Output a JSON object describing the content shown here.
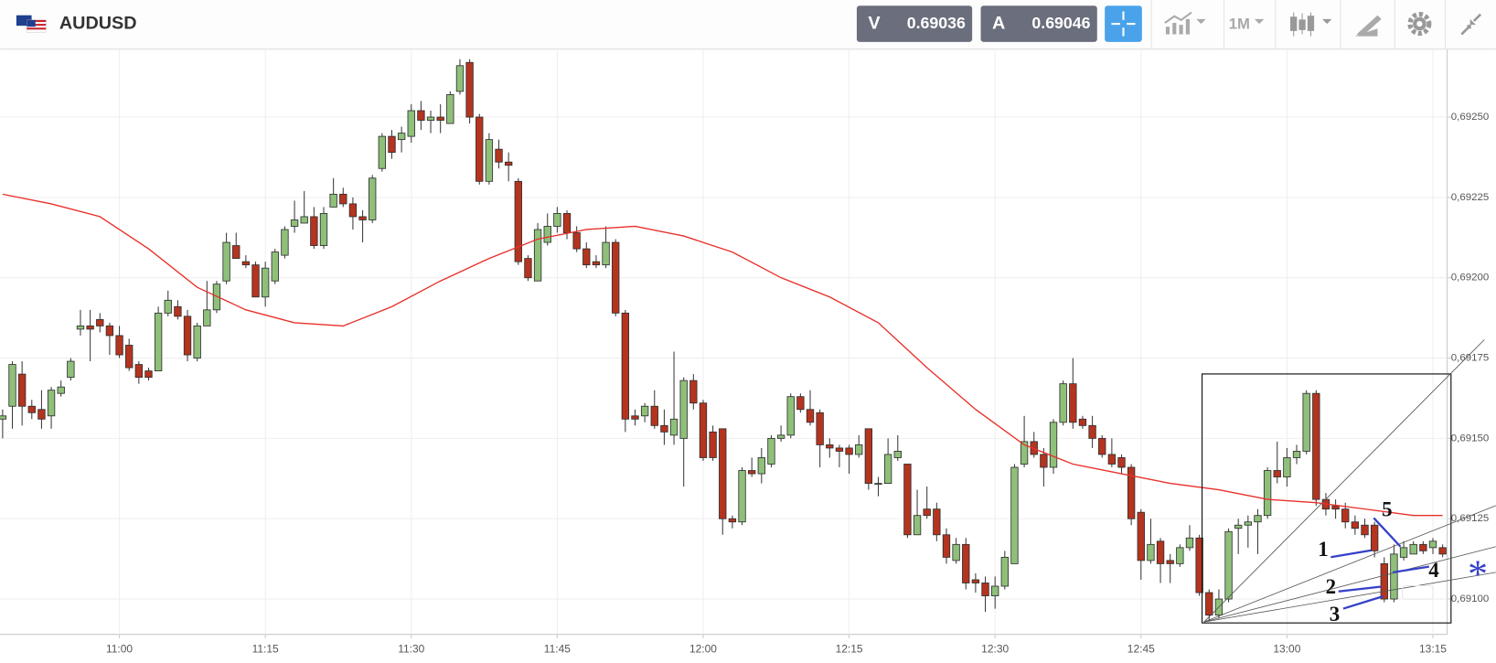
{
  "header": {
    "symbol": "AUDUSD",
    "bid_label": "V",
    "bid": 0.69036,
    "ask_label": "A",
    "ask": 0.69046,
    "timeframe": "1M"
  },
  "chart_data": {
    "type": "candlestick",
    "x": [
      "10:48",
      "10:49",
      "10:50",
      "10:51",
      "10:52",
      "10:53",
      "10:54",
      "10:55",
      "10:56",
      "10:57",
      "10:58",
      "10:59",
      "11:00",
      "11:01",
      "11:02",
      "11:03",
      "11:04",
      "11:05",
      "11:06",
      "11:07",
      "11:08",
      "11:09",
      "11:10",
      "11:11",
      "11:12",
      "11:13",
      "11:14",
      "11:15",
      "11:16",
      "11:17",
      "11:18",
      "11:19",
      "11:20",
      "11:21",
      "11:22",
      "11:23",
      "11:24",
      "11:25",
      "11:26",
      "11:27",
      "11:28",
      "11:29",
      "11:30",
      "11:31",
      "11:32",
      "11:33",
      "11:34",
      "11:35",
      "11:36",
      "11:37",
      "11:38",
      "11:39",
      "11:40",
      "11:41",
      "11:42",
      "11:43",
      "11:44",
      "11:45",
      "11:46",
      "11:47",
      "11:48",
      "11:49",
      "11:50",
      "11:51",
      "11:52",
      "11:53",
      "11:54",
      "11:55",
      "11:56",
      "11:57",
      "11:58",
      "11:59",
      "12:00",
      "12:01",
      "12:02",
      "12:03",
      "12:04",
      "12:05",
      "12:06",
      "12:07",
      "12:08",
      "12:09",
      "12:10",
      "12:11",
      "12:12",
      "12:13",
      "12:14",
      "12:15",
      "12:16",
      "12:17",
      "12:18",
      "12:19",
      "12:20",
      "12:21",
      "12:22",
      "12:23",
      "12:24",
      "12:25",
      "12:26",
      "12:27",
      "12:28",
      "12:29",
      "12:30",
      "12:31",
      "12:32",
      "12:33",
      "12:34",
      "12:35",
      "12:36",
      "12:37",
      "12:38",
      "12:39",
      "12:40",
      "12:41",
      "12:42",
      "12:43",
      "12:44",
      "12:45",
      "12:46",
      "12:47",
      "12:48",
      "12:49",
      "12:50",
      "12:51",
      "12:52",
      "12:53",
      "12:54",
      "12:55",
      "12:56",
      "12:57",
      "12:58",
      "12:59",
      "13:00",
      "13:01",
      "13:02",
      "13:03",
      "13:04",
      "13:05",
      "13:06",
      "13:07",
      "13:08",
      "13:09",
      "13:10",
      "13:11",
      "13:12",
      "13:13",
      "13:14",
      "13:15",
      "13:16"
    ],
    "ohlc": [
      [
        0.69156,
        0.69159,
        0.6915,
        0.69157
      ],
      [
        0.6916,
        0.69174,
        0.69153,
        0.69173
      ],
      [
        0.6917,
        0.69174,
        0.69154,
        0.6916
      ],
      [
        0.6916,
        0.69162,
        0.69156,
        0.69158
      ],
      [
        0.69159,
        0.69165,
        0.69153,
        0.69156
      ],
      [
        0.69157,
        0.69166,
        0.69153,
        0.69165
      ],
      [
        0.69164,
        0.69168,
        0.69163,
        0.69166
      ],
      [
        0.69169,
        0.69175,
        0.69168,
        0.69174
      ],
      [
        0.69184,
        0.6919,
        0.69182,
        0.69185
      ],
      [
        0.69185,
        0.6919,
        0.69174,
        0.69184
      ],
      [
        0.69187,
        0.69189,
        0.69183,
        0.69185
      ],
      [
        0.69185,
        0.69186,
        0.69176,
        0.69182
      ],
      [
        0.69182,
        0.69185,
        0.69175,
        0.69176
      ],
      [
        0.69179,
        0.69181,
        0.69171,
        0.69172
      ],
      [
        0.69173,
        0.69174,
        0.69167,
        0.69169
      ],
      [
        0.69171,
        0.69172,
        0.69168,
        0.69169
      ],
      [
        0.69171,
        0.69191,
        0.69171,
        0.69189
      ],
      [
        0.69189,
        0.69196,
        0.69188,
        0.69193
      ],
      [
        0.69191,
        0.69193,
        0.69187,
        0.69188
      ],
      [
        0.69188,
        0.6919,
        0.69174,
        0.69176
      ],
      [
        0.69175,
        0.69186,
        0.69174,
        0.69185
      ],
      [
        0.69185,
        0.69199,
        0.69185,
        0.6919
      ],
      [
        0.6919,
        0.69199,
        0.69189,
        0.69198
      ],
      [
        0.69199,
        0.69214,
        0.69198,
        0.69211
      ],
      [
        0.6921,
        0.69214,
        0.69206,
        0.69206
      ],
      [
        0.69205,
        0.69207,
        0.69203,
        0.69204
      ],
      [
        0.69204,
        0.69205,
        0.69194,
        0.69194
      ],
      [
        0.69194,
        0.69205,
        0.69191,
        0.69203
      ],
      [
        0.69199,
        0.69209,
        0.69198,
        0.69208
      ],
      [
        0.69207,
        0.69216,
        0.69206,
        0.69215
      ],
      [
        0.69216,
        0.69224,
        0.69214,
        0.69218
      ],
      [
        0.69217,
        0.69227,
        0.69217,
        0.69219
      ],
      [
        0.69219,
        0.69222,
        0.69209,
        0.6921
      ],
      [
        0.6921,
        0.69222,
        0.69209,
        0.6922
      ],
      [
        0.69222,
        0.69231,
        0.69222,
        0.69226
      ],
      [
        0.69226,
        0.69228,
        0.69222,
        0.69223
      ],
      [
        0.69223,
        0.69225,
        0.69215,
        0.69219
      ],
      [
        0.69219,
        0.69221,
        0.69211,
        0.69218
      ],
      [
        0.69218,
        0.69232,
        0.69217,
        0.69231
      ],
      [
        0.69234,
        0.69245,
        0.69233,
        0.69244
      ],
      [
        0.69244,
        0.69246,
        0.69237,
        0.69239
      ],
      [
        0.69243,
        0.69247,
        0.69239,
        0.69245
      ],
      [
        0.69244,
        0.69254,
        0.69242,
        0.69252
      ],
      [
        0.69252,
        0.69255,
        0.69246,
        0.69249
      ],
      [
        0.69249,
        0.69252,
        0.69245,
        0.6925
      ],
      [
        0.6925,
        0.69254,
        0.69245,
        0.69249
      ],
      [
        0.69248,
        0.69258,
        0.69248,
        0.69257
      ],
      [
        0.69258,
        0.69268,
        0.69257,
        0.69266
      ],
      [
        0.69267,
        0.69268,
        0.69248,
        0.6925
      ],
      [
        0.6925,
        0.69251,
        0.69229,
        0.6923
      ],
      [
        0.6923,
        0.69245,
        0.69229,
        0.69243
      ],
      [
        0.6924,
        0.69243,
        0.69234,
        0.69236
      ],
      [
        0.69236,
        0.69239,
        0.6923,
        0.69235
      ],
      [
        0.6923,
        0.69231,
        0.69204,
        0.69205
      ],
      [
        0.69206,
        0.69207,
        0.69199,
        0.692
      ],
      [
        0.69199,
        0.69217,
        0.69199,
        0.69215
      ],
      [
        0.69211,
        0.6922,
        0.6921,
        0.69216
      ],
      [
        0.69216,
        0.69222,
        0.69214,
        0.6922
      ],
      [
        0.6922,
        0.69221,
        0.69212,
        0.69214
      ],
      [
        0.69214,
        0.69216,
        0.69208,
        0.69209
      ],
      [
        0.69209,
        0.69211,
        0.69203,
        0.69204
      ],
      [
        0.69205,
        0.69207,
        0.69203,
        0.69204
      ],
      [
        0.69204,
        0.69216,
        0.69203,
        0.69211
      ],
      [
        0.69211,
        0.69212,
        0.69188,
        0.69189
      ],
      [
        0.69189,
        0.6919,
        0.69152,
        0.69156
      ],
      [
        0.69157,
        0.69159,
        0.69154,
        0.69156
      ],
      [
        0.69157,
        0.69161,
        0.69155,
        0.6916
      ],
      [
        0.6916,
        0.69165,
        0.69153,
        0.69154
      ],
      [
        0.69154,
        0.69159,
        0.69148,
        0.69152
      ],
      [
        0.69151,
        0.69177,
        0.69148,
        0.69156
      ],
      [
        0.6915,
        0.69169,
        0.69135,
        0.69168
      ],
      [
        0.69168,
        0.6917,
        0.69159,
        0.69161
      ],
      [
        0.69161,
        0.69162,
        0.69143,
        0.69144
      ],
      [
        0.69152,
        0.69154,
        0.69143,
        0.69144
      ],
      [
        0.69153,
        0.69153,
        0.6912,
        0.69125
      ],
      [
        0.69125,
        0.69126,
        0.69122,
        0.69124
      ],
      [
        0.69124,
        0.69141,
        0.69123,
        0.6914
      ],
      [
        0.6914,
        0.69144,
        0.69138,
        0.69139
      ],
      [
        0.69139,
        0.69147,
        0.69136,
        0.69144
      ],
      [
        0.69142,
        0.69151,
        0.69141,
        0.6915
      ],
      [
        0.6915,
        0.69154,
        0.69149,
        0.69151
      ],
      [
        0.69151,
        0.69164,
        0.6915,
        0.69163
      ],
      [
        0.69163,
        0.69164,
        0.69158,
        0.69159
      ],
      [
        0.69159,
        0.69165,
        0.69154,
        0.69155
      ],
      [
        0.69158,
        0.69159,
        0.69141,
        0.69148
      ],
      [
        0.69148,
        0.6915,
        0.69144,
        0.69147
      ],
      [
        0.69147,
        0.69148,
        0.69141,
        0.69146
      ],
      [
        0.69147,
        0.69148,
        0.69139,
        0.69145
      ],
      [
        0.69145,
        0.69151,
        0.69144,
        0.69148
      ],
      [
        0.69153,
        0.69153,
        0.69134,
        0.69136
      ],
      [
        0.69136,
        0.69138,
        0.69132,
        0.69136
      ],
      [
        0.69136,
        0.6915,
        0.69136,
        0.69145
      ],
      [
        0.69144,
        0.69151,
        0.69143,
        0.69146
      ],
      [
        0.69142,
        0.69142,
        0.69119,
        0.6912
      ],
      [
        0.6912,
        0.69134,
        0.6912,
        0.69126
      ],
      [
        0.69128,
        0.69135,
        0.69125,
        0.69126
      ],
      [
        0.69128,
        0.6913,
        0.69118,
        0.6912
      ],
      [
        0.6912,
        0.69122,
        0.69111,
        0.69113
      ],
      [
        0.69112,
        0.69119,
        0.69111,
        0.69117
      ],
      [
        0.69117,
        0.69119,
        0.69103,
        0.69105
      ],
      [
        0.69106,
        0.69108,
        0.69102,
        0.69105
      ],
      [
        0.69105,
        0.69107,
        0.69096,
        0.69101
      ],
      [
        0.69101,
        0.69107,
        0.69097,
        0.69104
      ],
      [
        0.69104,
        0.69115,
        0.69103,
        0.69113
      ],
      [
        0.69111,
        0.69142,
        0.69111,
        0.69141
      ],
      [
        0.69142,
        0.69157,
        0.69141,
        0.69149
      ],
      [
        0.69149,
        0.69152,
        0.69144,
        0.69145
      ],
      [
        0.69145,
        0.69147,
        0.69135,
        0.69141
      ],
      [
        0.69141,
        0.69156,
        0.69139,
        0.69155
      ],
      [
        0.69155,
        0.69168,
        0.69154,
        0.69167
      ],
      [
        0.69167,
        0.69175,
        0.69153,
        0.69155
      ],
      [
        0.69156,
        0.69157,
        0.69153,
        0.69154
      ],
      [
        0.69154,
        0.69157,
        0.69147,
        0.6915
      ],
      [
        0.6915,
        0.69151,
        0.69144,
        0.69145
      ],
      [
        0.69145,
        0.6915,
        0.69141,
        0.69142
      ],
      [
        0.69144,
        0.69145,
        0.69139,
        0.69141
      ],
      [
        0.69141,
        0.69142,
        0.69123,
        0.69125
      ],
      [
        0.69127,
        0.69128,
        0.69106,
        0.69112
      ],
      [
        0.69112,
        0.69125,
        0.69111,
        0.69117
      ],
      [
        0.69118,
        0.69119,
        0.69105,
        0.69111
      ],
      [
        0.69112,
        0.69114,
        0.69105,
        0.69111
      ],
      [
        0.69111,
        0.69117,
        0.6911,
        0.69116
      ],
      [
        0.69116,
        0.69123,
        0.69115,
        0.69119
      ],
      [
        0.69119,
        0.6912,
        0.69101,
        0.69102
      ],
      [
        0.69102,
        0.69103,
        0.69093,
        0.69095
      ],
      [
        0.69095,
        0.69103,
        0.69094,
        0.691
      ],
      [
        0.691,
        0.69122,
        0.69099,
        0.69121
      ],
      [
        0.69122,
        0.69125,
        0.69114,
        0.69123
      ],
      [
        0.69123,
        0.69126,
        0.69116,
        0.69124
      ],
      [
        0.69124,
        0.69128,
        0.69114,
        0.69126
      ],
      [
        0.69126,
        0.69141,
        0.69125,
        0.6914
      ],
      [
        0.6914,
        0.69149,
        0.69136,
        0.69138
      ],
      [
        0.69138,
        0.69147,
        0.69135,
        0.69144
      ],
      [
        0.69144,
        0.69148,
        0.69142,
        0.69146
      ],
      [
        0.69146,
        0.69165,
        0.69145,
        0.69164
      ],
      [
        0.69164,
        0.69165,
        0.69129,
        0.69131
      ],
      [
        0.69131,
        0.69133,
        0.69126,
        0.69128
      ],
      [
        0.69129,
        0.69131,
        0.69125,
        0.69128
      ],
      [
        0.69128,
        0.6913,
        0.69122,
        0.69124
      ],
      [
        0.69124,
        0.69126,
        0.6912,
        0.69122
      ],
      [
        0.69123,
        0.69125,
        0.69119,
        0.6912
      ],
      [
        0.69123,
        0.69124,
        0.69113,
        0.69115
      ],
      [
        0.69111,
        0.69113,
        0.69099,
        0.691
      ],
      [
        0.691,
        0.69117,
        0.69099,
        0.69114
      ],
      [
        0.69113,
        0.69118,
        0.69112,
        0.69116
      ],
      [
        0.69114,
        0.69118,
        0.69114,
        0.69117
      ],
      [
        0.69117,
        0.69118,
        0.69114,
        0.69115
      ],
      [
        0.69116,
        0.69119,
        0.69114,
        0.69118
      ],
      [
        0.69116,
        0.69117,
        0.69113,
        0.69114
      ]
    ],
    "up_color": "#8fc07a",
    "down_color": "#b5341f",
    "moving_average": {
      "color": "#e8302a",
      "x": [
        "10:48",
        "10:53",
        "10:58",
        "11:03",
        "11:08",
        "11:13",
        "11:18",
        "11:23",
        "11:28",
        "11:33",
        "11:38",
        "11:43",
        "11:48",
        "11:53",
        "11:58",
        "12:03",
        "12:08",
        "12:13",
        "12:18",
        "12:23",
        "12:28",
        "12:33",
        "12:38",
        "12:43",
        "12:48",
        "12:53",
        "12:58",
        "13:03",
        "13:08",
        "13:13",
        "13:16"
      ],
      "values": [
        0.69226,
        0.69223,
        0.69219,
        0.69209,
        0.69197,
        0.6919,
        0.69186,
        0.69185,
        0.69191,
        0.69199,
        0.69206,
        0.69212,
        0.69215,
        0.69216,
        0.69213,
        0.69208,
        0.692,
        0.69194,
        0.69186,
        0.69172,
        0.69159,
        0.69148,
        0.69142,
        0.69139,
        0.69136,
        0.69134,
        0.69131,
        0.6913,
        0.69128,
        0.69126,
        0.69126
      ]
    },
    "xlim": [
      "10:48",
      "13:16"
    ],
    "xticks": [
      "11:00",
      "11:15",
      "11:30",
      "11:45",
      "12:00",
      "12:15",
      "12:30",
      "12:45",
      "13:00",
      "13:15"
    ],
    "ylim": [
      0.69089,
      0.69271
    ],
    "yticks": [
      {
        "value": 0.691,
        "label": "0,69100"
      },
      {
        "value": 0.69125,
        "label": "0,69125"
      },
      {
        "value": 0.6915,
        "label": "0,69150"
      },
      {
        "value": 0.69175,
        "label": "0,69175"
      },
      {
        "value": 0.692,
        "label": "0,69200"
      },
      {
        "value": 0.69225,
        "label": "0,69225"
      },
      {
        "value": 0.6925,
        "label": "0,69250"
      }
    ],
    "grid": true,
    "annotations": [
      "1",
      "2",
      "3",
      "4",
      "5",
      "*"
    ]
  }
}
